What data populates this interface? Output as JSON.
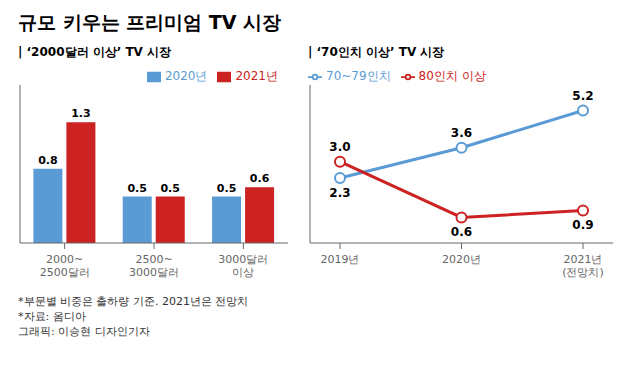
{
  "title": "규모 키우는 프리미엄 TV 시장",
  "annotations": [
    "*부문별 비중은 출하량 기준. 2021년은 전망치",
    "*자료: 옴디아",
    "그래픽: 이승현 디자인기자"
  ],
  "chart_data": [
    {
      "type": "bar",
      "subtitle": "| ‘2000달러 이상’ TV 시장",
      "categories": [
        "2000~\n2500달러",
        "2500~\n3000달러",
        "3000달러\n이상"
      ],
      "series": [
        {
          "name": "2020년",
          "color": "#5b9bd5",
          "values": [
            0.8,
            0.5,
            0.5
          ]
        },
        {
          "name": "2021년",
          "color": "#cc2222",
          "values": [
            1.3,
            0.5,
            0.6
          ]
        }
      ],
      "ylim": [
        0,
        1.7
      ],
      "data_labels": true,
      "tick_labels": "x",
      "legend": "top",
      "grid": false
    },
    {
      "type": "line",
      "subtitle": "| ‘70인치 이상’ TV 시장",
      "categories": [
        "2019년",
        "2020년",
        "2021년\n(전망치)"
      ],
      "series": [
        {
          "name": "70~79인치",
          "color": "#5b9bd5",
          "values": [
            2.3,
            3.6,
            5.2
          ],
          "marker": "circle"
        },
        {
          "name": "80인치 이상",
          "color": "#cc2222",
          "values": [
            3.0,
            0.6,
            0.9
          ],
          "value_labels": [
            "3.0",
            "0.6",
            "0.9"
          ],
          "marker": "circle"
        }
      ],
      "ylim": [
        -0.5,
        6.3
      ],
      "data_labels": true,
      "tick_labels": "x",
      "legend": "top",
      "grid": false
    }
  ]
}
